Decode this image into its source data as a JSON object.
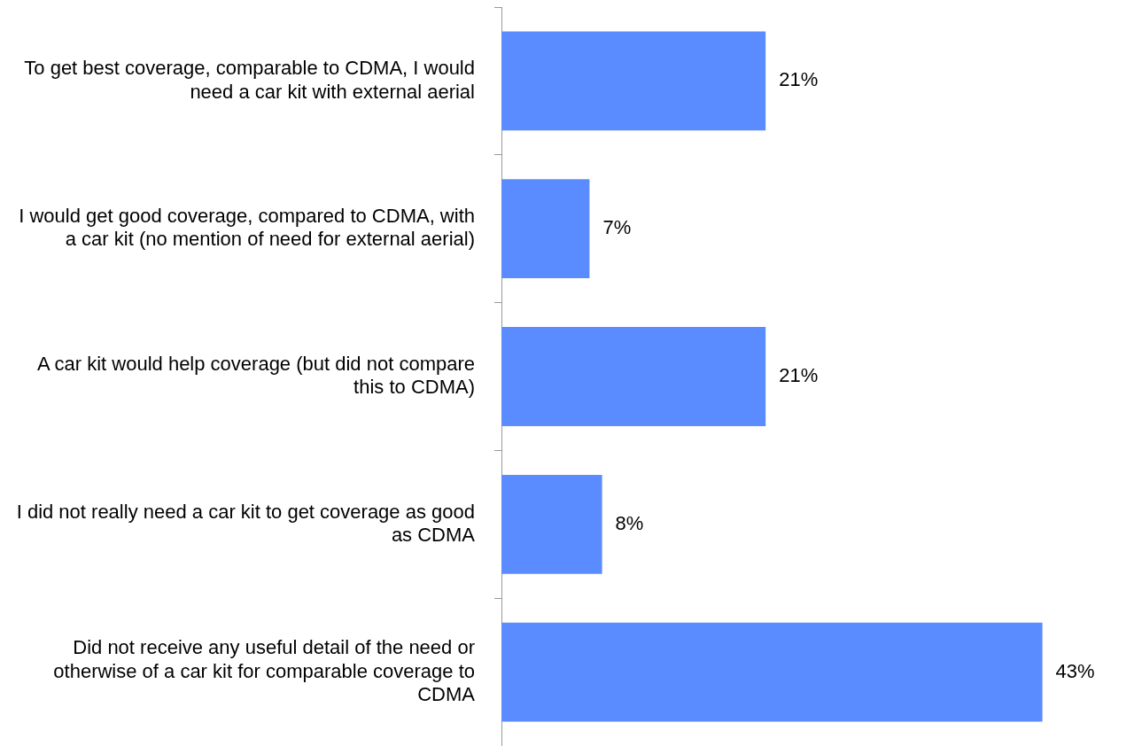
{
  "chart_data": {
    "type": "bar",
    "orientation": "horizontal",
    "categories": [
      "To get best coverage, comparable to CDMA, I would need a car kit with external aerial",
      "I would get good coverage, compared to CDMA, with a car kit (no mention of need for external aerial)",
      "A car kit would help coverage (but did not compare this to CDMA)",
      "I did not really need a car kit to get coverage as good as CDMA",
      "Did not receive any useful detail of the need or otherwise of a car kit for comparable coverage to CDMA"
    ],
    "values": [
      21,
      7,
      21,
      8,
      43
    ],
    "value_labels": [
      "21%",
      "7%",
      "21%",
      "8%",
      "43%"
    ],
    "color": "#5b8cff",
    "grid": false,
    "legend": false,
    "tick_labels": "y"
  }
}
